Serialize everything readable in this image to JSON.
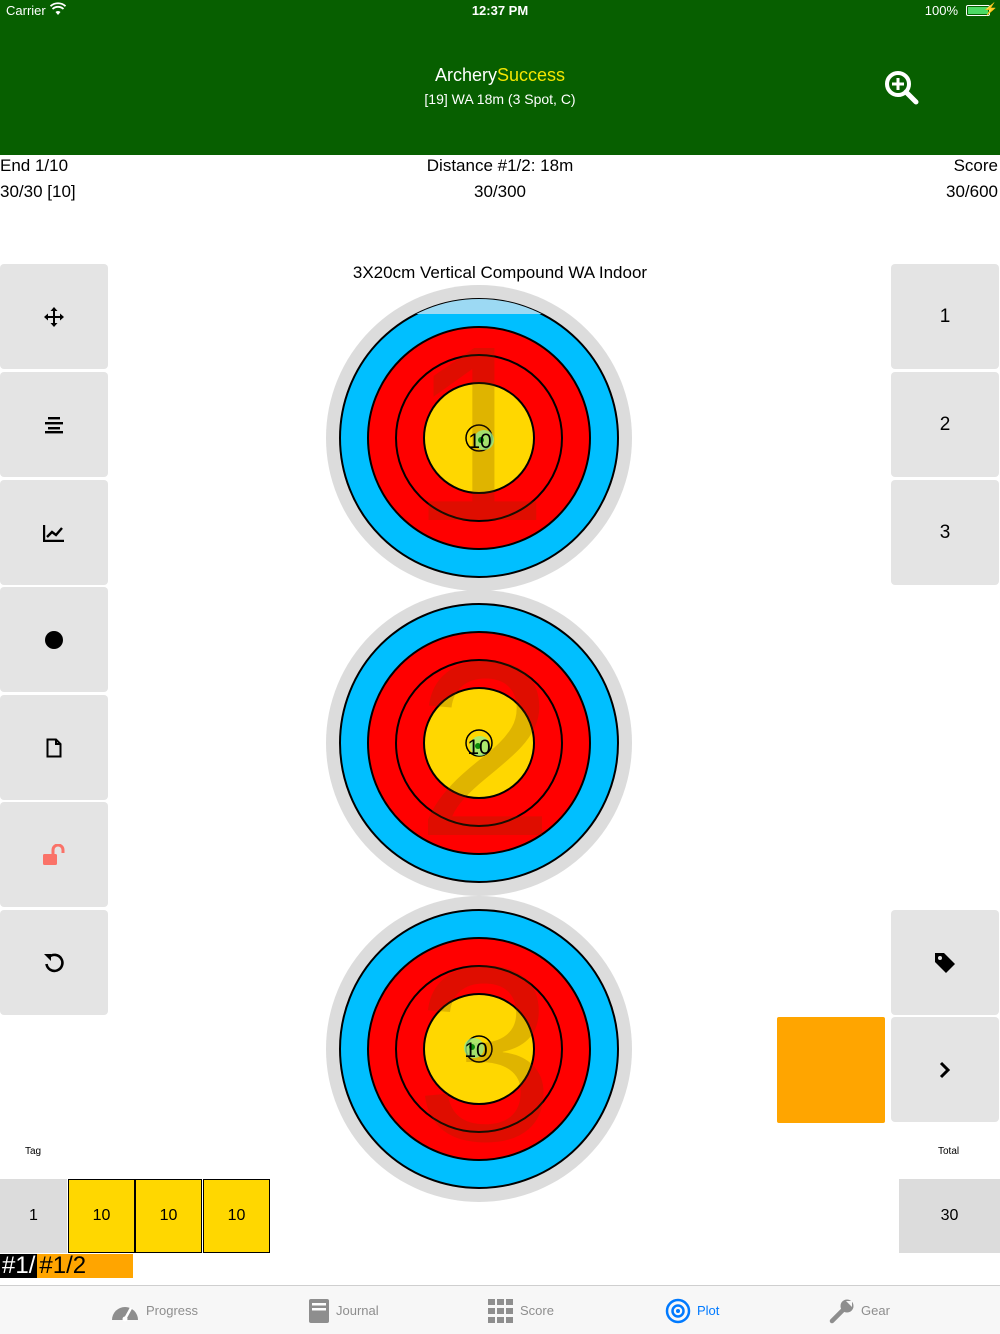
{
  "statusbar": {
    "carrier": "Carrier",
    "time": "12:37 PM",
    "battery": "100%"
  },
  "header": {
    "title_part1": "Archery",
    "title_part2": "Success",
    "subtitle": "[19] WA 18m (3 Spot, C)",
    "zoom_icon": "zoom-in-icon"
  },
  "info": {
    "end_label": "End 1/10",
    "end_score": "30/30 [10]",
    "distance_label": "Distance #1/2: 18m",
    "distance_score": "30/300",
    "score_label": "Score",
    "score_value": "30/600"
  },
  "target": {
    "title": "3X20cm Vertical Compound WA Indoor",
    "spots": [
      {
        "number": "1",
        "hit_label": "10"
      },
      {
        "number": "2",
        "hit_label": "10"
      },
      {
        "number": "3",
        "hit_label": "10"
      }
    ]
  },
  "left_tools": [
    "move-icon",
    "align-icon",
    "chart-icon",
    "dot-icon",
    "document-icon",
    "unlock-icon",
    "undo-icon"
  ],
  "right_buttons": {
    "spot_1": "1",
    "spot_2": "2",
    "spot_3": "3",
    "tag_icon": "tag-icon",
    "next_icon": "chevron-right-icon"
  },
  "colors": {
    "nav_green": "#075f00",
    "accent_yellow": "#f3e600",
    "orange": "#ffa500",
    "gold": "#ffd700",
    "red": "#ff0000",
    "blue": "#00bfff",
    "tab_active": "#007aff"
  },
  "scorecard": {
    "tag_label": "Tag",
    "total_label": "Total",
    "end_number": "1",
    "arrows": [
      "10",
      "10",
      "10"
    ],
    "total": "30"
  },
  "distance_tags": {
    "first": "#1/",
    "second": "#1/2"
  },
  "tabs": [
    {
      "label": "Progress",
      "icon": "gauge-icon"
    },
    {
      "label": "Journal",
      "icon": "book-icon"
    },
    {
      "label": "Score",
      "icon": "grid-icon"
    },
    {
      "label": "Plot",
      "icon": "target-icon",
      "active": true
    },
    {
      "label": "Gear",
      "icon": "wrench-icon"
    }
  ]
}
